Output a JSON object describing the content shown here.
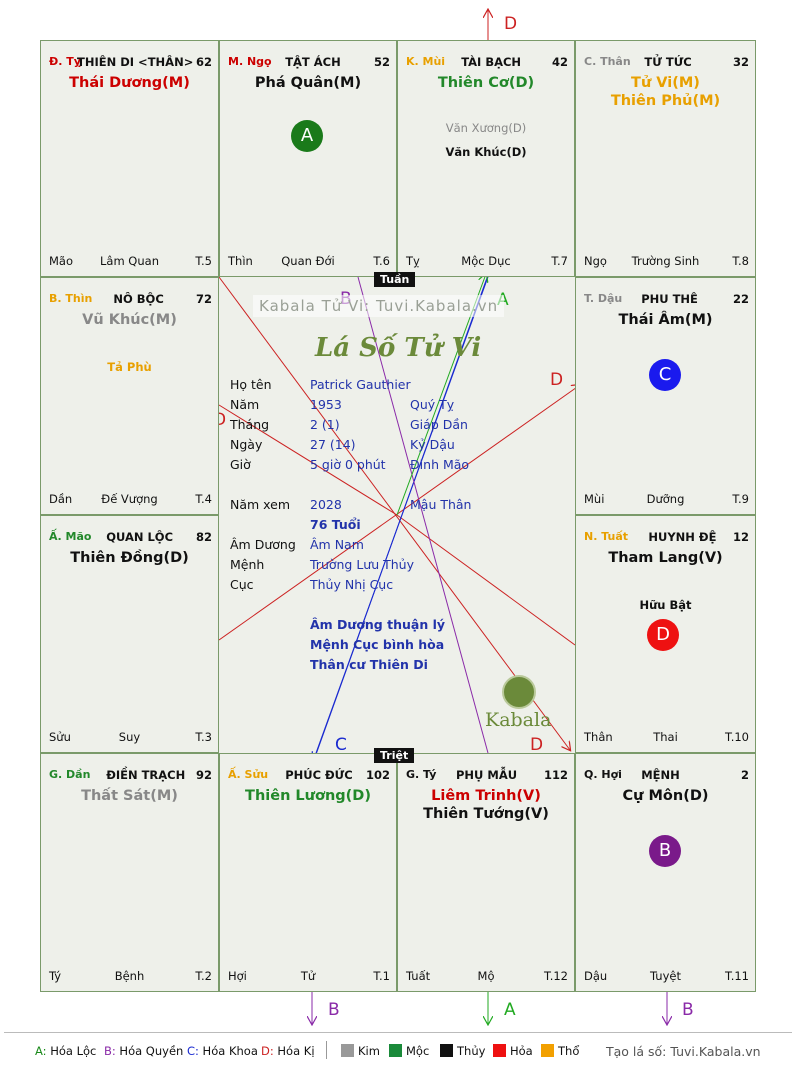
{
  "cells": [
    {
      "id": "ty",
      "tag": "Đ. Tỵ",
      "tag_color": "#cc0000",
      "name": "THIÊN DI <THÂN>",
      "num": "62",
      "majors": [
        {
          "text": "Thái Dương(M)",
          "color": "#cc0000"
        }
      ],
      "minors": [],
      "bottom_left": "Mão",
      "bottom_center": "Lâm Quan",
      "bottom_right": "T.5"
    },
    {
      "id": "ngo",
      "tag": "M. Ngọ",
      "tag_color": "#cc0000",
      "name": "TẬT ÁCH",
      "num": "52",
      "majors": [
        {
          "text": "Phá Quân(M)",
          "color": "#111111"
        }
      ],
      "minors": [],
      "bottom_left": "Thìn",
      "bottom_center": "Quan Đới",
      "bottom_right": "T.6"
    },
    {
      "id": "mui",
      "tag": "K. Mùi",
      "tag_color": "#e8a000",
      "name": "TÀI BẠCH",
      "num": "42",
      "majors": [
        {
          "text": "Thiên Cơ(D)",
          "color": "#22882a"
        }
      ],
      "minors": [
        {
          "text": "Văn Xương(D)",
          "color": "#888888"
        },
        {
          "text": "Văn Khúc(D)",
          "color": "#111111"
        }
      ],
      "bottom_left": "Tỵ",
      "bottom_center": "Mộc Dục",
      "bottom_right": "T.7"
    },
    {
      "id": "than",
      "tag": "C. Thân",
      "tag_color": "#888888",
      "name": "TỬ TỨC",
      "num": "32",
      "majors": [
        {
          "text": "Tử Vi(M)",
          "color": "#e8a000"
        },
        {
          "text": "Thiên Phủ(M)",
          "color": "#e8a000"
        }
      ],
      "minors": [],
      "bottom_left": "Ngọ",
      "bottom_center": "Trường Sinh",
      "bottom_right": "T.8"
    },
    {
      "id": "thin",
      "tag": "B. Thìn",
      "tag_color": "#e8a000",
      "name": "NÔ BỘC",
      "num": "72",
      "majors": [
        {
          "text": "Vũ Khúc(M)",
          "color": "#888888"
        }
      ],
      "minors": [
        {
          "text": "Tả Phù",
          "color": "#e8a000"
        }
      ],
      "bottom_left": "Dần",
      "bottom_center": "Đế Vượng",
      "bottom_right": "T.4"
    },
    {
      "id": "dau",
      "tag": "T. Dậu",
      "tag_color": "#888888",
      "name": "PHU THÊ",
      "num": "22",
      "majors": [
        {
          "text": "Thái Âm(M)",
          "color": "#111111"
        }
      ],
      "minors": [],
      "bottom_left": "Mùi",
      "bottom_center": "Dưỡng",
      "bottom_right": "T.9"
    },
    {
      "id": "mao",
      "tag": "Ấ. Mão",
      "tag_color": "#22882a",
      "name": "QUAN LỘC",
      "num": "82",
      "majors": [
        {
          "text": "Thiên Đồng(D)",
          "color": "#111111"
        }
      ],
      "minors": [],
      "bottom_left": "Sửu",
      "bottom_center": "Suy",
      "bottom_right": "T.3"
    },
    {
      "id": "tuat",
      "tag": "N. Tuất",
      "tag_color": "#e8a000",
      "name": "HUYNH ĐỆ",
      "num": "12",
      "majors": [
        {
          "text": "Tham Lang(V)",
          "color": "#111111"
        }
      ],
      "minors": [
        {
          "text": "Hữu Bật",
          "color": "#111111"
        }
      ],
      "bottom_left": "Thân",
      "bottom_center": "Thai",
      "bottom_right": "T.10"
    },
    {
      "id": "dan",
      "tag": "G. Dần",
      "tag_color": "#22882a",
      "name": "ĐIỀN TRẠCH",
      "num": "92",
      "majors": [
        {
          "text": "Thất Sát(M)",
          "color": "#888888"
        }
      ],
      "minors": [],
      "bottom_left": "Tý",
      "bottom_center": "Bệnh",
      "bottom_right": "T.2"
    },
    {
      "id": "suu",
      "tag": "Ấ. Sửu",
      "tag_color": "#e8a000",
      "name": "PHÚC ĐỨC",
      "num": "102",
      "majors": [
        {
          "text": "Thiên Lương(D)",
          "color": "#22882a"
        }
      ],
      "minors": [],
      "bottom_left": "Hợi",
      "bottom_center": "Tử",
      "bottom_right": "T.1"
    },
    {
      "id": "ty2",
      "tag": "G. Tý",
      "tag_color": "#111111",
      "name": "PHỤ MẪU",
      "num": "112",
      "majors": [
        {
          "text": "Liêm Trinh(V)",
          "color": "#cc0000"
        },
        {
          "text": "Thiên Tướng(V)",
          "color": "#111111"
        }
      ],
      "minors": [],
      "bottom_left": "Tuất",
      "bottom_center": "Mộ",
      "bottom_right": "T.12"
    },
    {
      "id": "hoi",
      "tag": "Q. Hợi",
      "tag_color": "#111111",
      "name": "MỆNH",
      "num": "2",
      "majors": [
        {
          "text": "Cự Môn(D)",
          "color": "#111111"
        }
      ],
      "minors": [],
      "bottom_left": "Dậu",
      "bottom_center": "Tuyệt",
      "bottom_right": "T.11"
    }
  ],
  "circles": [
    {
      "cell": "ngo",
      "letter": "A",
      "color": "#1a7a1a"
    },
    {
      "cell": "dau",
      "letter": "C",
      "color": "#1a1aee"
    },
    {
      "cell": "tuat",
      "letter": "D",
      "color": "#ee1111"
    },
    {
      "cell": "hoi",
      "letter": "B",
      "color": "#7a1a8a"
    }
  ],
  "markers": {
    "tuan": "Tuần",
    "triet": "Triệt"
  },
  "center": {
    "watermark": "Kabala Tử Vi: Tuvi.Kabala.vn",
    "logo_text": "Lá Số Tử Vi",
    "brand": "Kabala",
    "rows": [
      {
        "label": "Họ tên",
        "value": "Patrick Gauthier",
        "extra": ""
      },
      {
        "label": "Năm",
        "value": "1953",
        "extra": "Quý Tỵ"
      },
      {
        "label": "Tháng",
        "value": "2  (1)",
        "extra": "Giáp Dần"
      },
      {
        "label": "Ngày",
        "value": "27  (14)",
        "extra": "Kỷ Dậu"
      },
      {
        "label": "Giờ",
        "value": "5 giờ 0 phút",
        "extra": "Đinh Mão"
      },
      {
        "label": "Năm xem",
        "value": "2028",
        "extra": "Mậu Thân"
      },
      {
        "label": "",
        "value": "76 Tuổi",
        "extra": ""
      },
      {
        "label": "Âm Dương",
        "value": "Âm Nam",
        "extra": ""
      },
      {
        "label": "Mệnh",
        "value": "Trường Lưu Thủy",
        "extra": ""
      },
      {
        "label": "Cục",
        "value": "Thủy Nhị Cục",
        "extra": ""
      }
    ],
    "notes": [
      "Âm Dương thuận lý",
      "Mệnh Cục bình hòa",
      "Thân cư Thiên Di"
    ]
  },
  "arrow_labels": {
    "a": "A",
    "b": "B",
    "c": "C",
    "d": "D"
  },
  "legend": {
    "hoa_loc": "A: Hóa Lộc",
    "hoa_quyen": "B: Hóa Quyền",
    "hoa_khoa": "C: Hóa Khoa",
    "hoa_ki": "D: Hóa Kị",
    "elements": [
      {
        "name": "Kim",
        "color": "#999999"
      },
      {
        "name": "Mộc",
        "color": "#1a8a3a"
      },
      {
        "name": "Thủy",
        "color": "#111111"
      },
      {
        "name": "Hỏa",
        "color": "#ee1111"
      },
      {
        "name": "Thổ",
        "color": "#f2a000"
      }
    ],
    "site": "Tạo lá số: Tuvi.Kabala.vn"
  }
}
